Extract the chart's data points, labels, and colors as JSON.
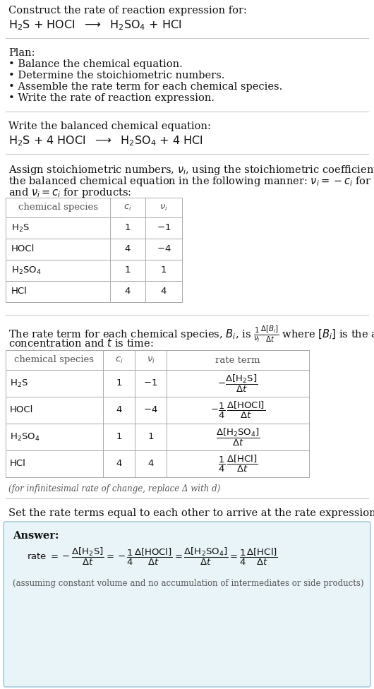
{
  "title_line1": "Construct the rate of reaction expression for:",
  "plan_header": "Plan:",
  "plan_items": [
    "• Balance the chemical equation.",
    "• Determine the stoichiometric numbers.",
    "• Assemble the rate term for each chemical species.",
    "• Write the rate of reaction expression."
  ],
  "balanced_header": "Write the balanced chemical equation:",
  "stoich_intro_line1": "Assign stoichiometric numbers, $\\nu_i$, using the stoichiometric coefficients, $c_i$, from",
  "stoich_intro_line2": "the balanced chemical equation in the following manner: $\\nu_i = -c_i$ for reactants",
  "stoich_intro_line3": "and $\\nu_i = c_i$ for products:",
  "rate_intro_line1": "The rate term for each chemical species, $B_i$, is $\\frac{1}{\\nu_i}\\frac{\\Delta[B_i]}{\\Delta t}$ where $[B_i]$ is the amount",
  "rate_intro_line2": "concentration and $t$ is time:",
  "infinitesimal_note": "(for infinitesimal rate of change, replace Δ with d)",
  "set_equal_text": "Set the rate terms equal to each other to arrive at the rate expression:",
  "answer_label": "Answer:",
  "answer_note": "(assuming constant volume and no accumulation of intermediates or side products)",
  "bg_color": "#ffffff",
  "answer_box_color": "#e8f4f8",
  "table_line_color": "#aaaaaa",
  "sep_line_color": "#cccccc",
  "text_color": "#111111",
  "gray_text_color": "#555555",
  "font_size": 10.5,
  "small_font_size": 9.5,
  "tiny_font_size": 8.5
}
